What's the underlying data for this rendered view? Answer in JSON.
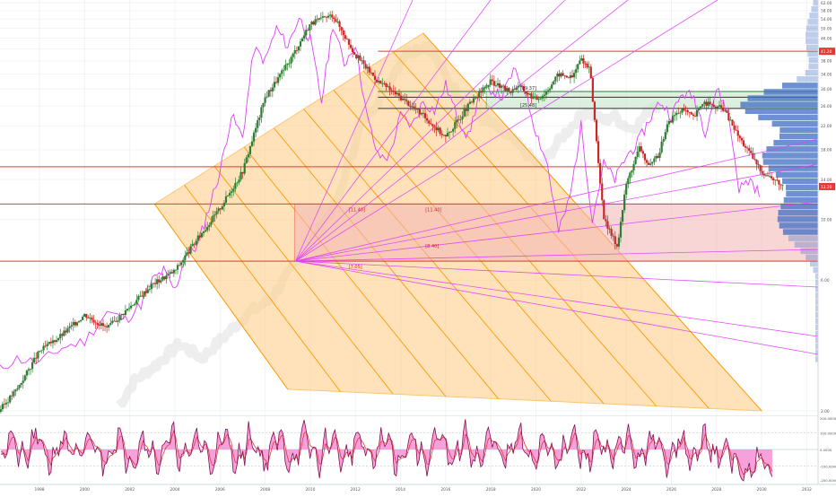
{
  "chart_data": {
    "type": "line",
    "x_axis": {
      "ticks": [
        "1998",
        "2000",
        "2002",
        "2004",
        "2006",
        "2008",
        "2010",
        "2012",
        "2014",
        "2016",
        "2018",
        "2020",
        "2022",
        "2024",
        "2026",
        "2028",
        "2030",
        "2032"
      ]
    },
    "y_axis": {
      "scale": "log",
      "range": [
        2.0,
        62.0
      ],
      "ticks": [
        "62.00",
        "58.00",
        "54.00",
        "50.00",
        "46.00",
        "42.00",
        "38.00",
        "34.00",
        "30.00",
        "26.00",
        "22.00",
        "18.00",
        "14.00",
        "10.00",
        "6.00",
        "2.00"
      ],
      "last_price_label": "13.20",
      "last_price_color": "#e53935",
      "level_marker_label": "41.20",
      "level_marker_color": "#e53935"
    },
    "annotations": {
      "box_upper_labels": [
        "[29.37]",
        "[25.48]"
      ],
      "box_lower_labels": [
        "[11.40]",
        "[7.05]",
        "[11.40]",
        "[8.40]"
      ]
    },
    "horizontal_levels": [
      {
        "value": 41.2,
        "color": "#e53935"
      },
      {
        "value": 29.37,
        "color": "#2e7d32"
      },
      {
        "value": 28.0,
        "color": "#333333"
      },
      {
        "value": 25.48,
        "color": "#333333"
      },
      {
        "value": 15.6,
        "color": "#e53935"
      },
      {
        "value": 11.4,
        "color": "#e53935"
      },
      {
        "value": 7.05,
        "color": "#e53935"
      }
    ],
    "price_series": {
      "name": "",
      "color_up": "#2e7d32",
      "color_down": "#c62828",
      "x": [
        1996.2,
        1997,
        1998,
        1999,
        2000,
        2001,
        2002,
        2003,
        2004,
        2005,
        2006,
        2007,
        2008,
        2009,
        2010,
        2011,
        2012,
        2013,
        2014,
        2015,
        2016,
        2017,
        2018,
        2018.6,
        2018.9,
        2019.2,
        2019.6,
        2020.0,
        2020.4,
        2021.0,
        2021.6,
        2022.0,
        2022.4,
        2023.0,
        2023.6,
        2024.0,
        2024.6,
        2025.0,
        2025.4,
        2025.8,
        2026.2,
        2026.6,
        2027.0,
        2027.4,
        2027.8,
        2028.3,
        2029.0,
        2030.0,
        2031.0
      ],
      "y": [
        2.0,
        2.4,
        3.3,
        3.8,
        4.5,
        4.0,
        4.8,
        5.8,
        6.5,
        8.5,
        11.0,
        15.0,
        28.0,
        37.0,
        52.0,
        56.0,
        40.0,
        32.0,
        28.0,
        24.0,
        20.0,
        26.0,
        32.0,
        30.0,
        29.5,
        31.0,
        29.0,
        27.5,
        29.0,
        34.0,
        33.0,
        39.0,
        35.0,
        10.0,
        8.0,
        13.5,
        18.5,
        15.5,
        17.0,
        22.0,
        24.5,
        25.0,
        23.5,
        27.0,
        26.0,
        25.5,
        20.0,
        15.0,
        13.2
      ]
    },
    "overlay_series": {
      "name": "",
      "color": "#e040fb",
      "x": [
        1996,
        1997,
        1998,
        1999,
        2000,
        2001,
        2001.8,
        2002.5,
        2003,
        2003.5,
        2004,
        2004.5,
        2005,
        2005.5,
        2006,
        2006.5,
        2007,
        2007.5,
        2008,
        2008.5,
        2009,
        2009.5,
        2010,
        2010.5,
        2011,
        2011.5,
        2012,
        2012.5,
        2013,
        2013.5,
        2014,
        2014.5,
        2015,
        2015.5,
        2016,
        2016.5,
        2017,
        2017.5,
        2018,
        2018.5,
        2019,
        2019.5,
        2020,
        2020.5,
        2021,
        2021.5,
        2022,
        2022.5,
        2023,
        2023.5,
        2024,
        2024.5,
        2025,
        2025.5,
        2026,
        2026.5,
        2027,
        2027.5,
        2028,
        2028.5,
        2029,
        2029.5,
        2030
      ],
      "y": [
        2.8,
        3.1,
        3.0,
        3.4,
        3.6,
        4.6,
        4.3,
        4.9,
        6.0,
        6.5,
        5.5,
        7.5,
        8.0,
        11.0,
        15.0,
        24.0,
        20.0,
        42.0,
        38.0,
        50.0,
        43.0,
        55.0,
        45.0,
        27.0,
        52.0,
        37.0,
        44.0,
        24.0,
        17.0,
        17.0,
        24.0,
        22.0,
        27.0,
        25.0,
        31.0,
        24.0,
        20.0,
        29.0,
        30.0,
        28.0,
        35.0,
        30.0,
        21.0,
        16.0,
        9.0,
        12.0,
        22.0,
        10.0,
        16.0,
        14.0,
        17.0,
        19.0,
        23.0,
        27.0,
        24.0,
        29.0,
        28.0,
        21.0,
        30.0,
        25.0,
        13.0,
        14.0,
        12.0
      ]
    },
    "ghost_series_color": "#e0e0e0",
    "fan_color": "#e040fb",
    "fan_channel_color": "#ffcc80",
    "fan_lines_color": "#ff9800",
    "volume_profile_color": "#4472c4",
    "oscillator": {
      "axis_labels": [
        "200.0000",
        "100.0000",
        "0.0000",
        "-100.0000",
        "-200.0000"
      ],
      "fill_color": "#f48fd6",
      "line_color": "#880e4f",
      "signal_color": "#e53935"
    },
    "grid": true
  }
}
